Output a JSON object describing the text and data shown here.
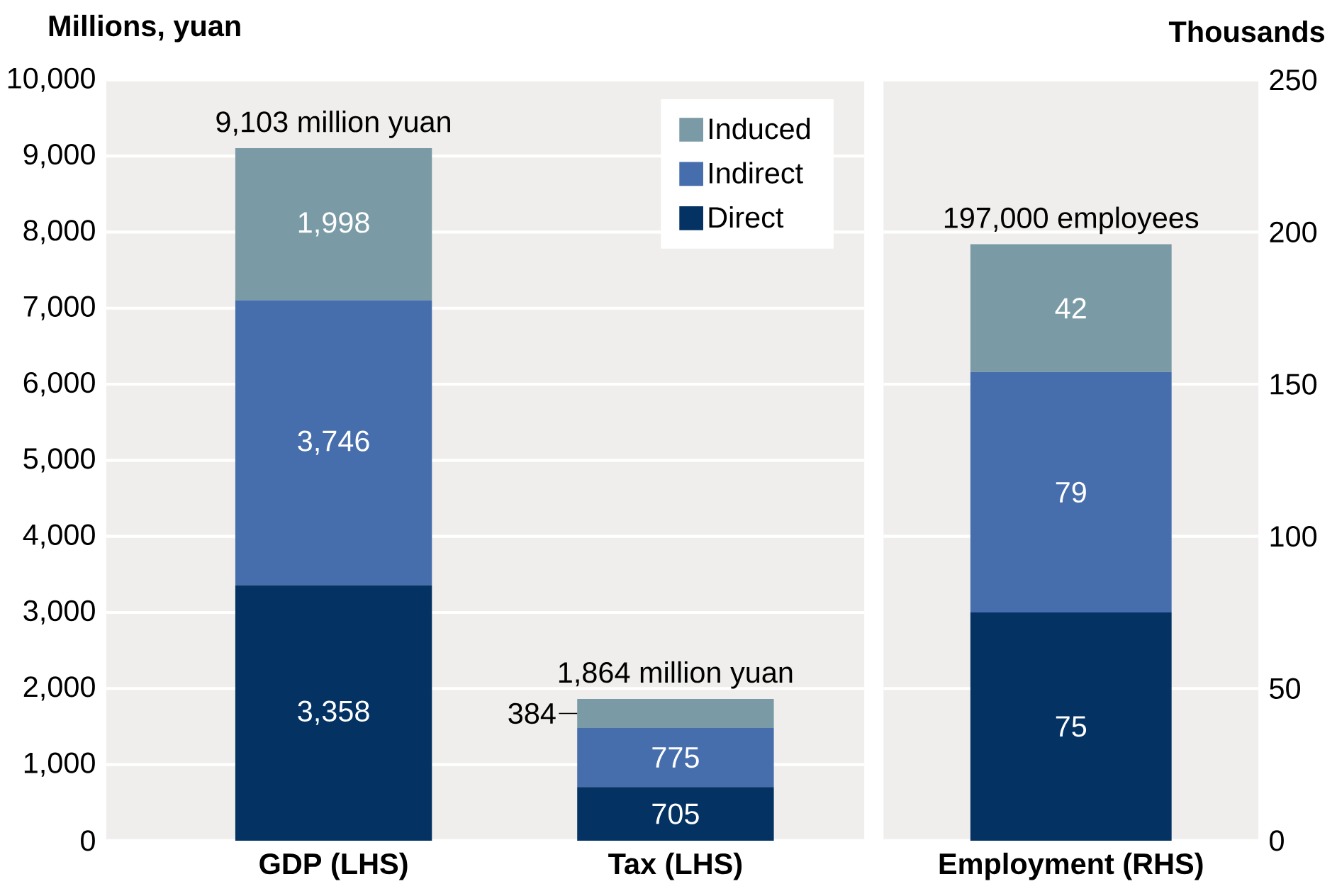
{
  "chart_data": [
    {
      "type": "bar",
      "ylabel": "Millions, yuan",
      "categories": [
        "GDP (LHS)",
        "Tax (LHS)"
      ],
      "stacked": true,
      "grid": "y",
      "legend": "top right",
      "ylim": [
        0,
        10000
      ],
      "yticks": [
        0,
        {
          "value": 1000,
          "label": "1,000"
        },
        {
          "value": 2000,
          "label": "2,000"
        },
        {
          "value": 3000,
          "label": "3,000"
        },
        {
          "value": 4000,
          "label": "4,000"
        },
        {
          "value": 5000,
          "label": "5,000"
        },
        {
          "value": 6000,
          "label": "6,000"
        },
        {
          "value": 7000,
          "label": "7,000"
        },
        {
          "value": 8000,
          "label": "8,000"
        },
        {
          "value": 9000,
          "label": "9,000"
        },
        {
          "value": 10000,
          "label": "10,000"
        }
      ],
      "series": [
        {
          "name": "Direct",
          "color": "#033263",
          "values": [
            3358,
            705
          ],
          "value_labels": [
            "3,358",
            "705"
          ]
        },
        {
          "name": "Indirect",
          "color": "#476eac",
          "values": [
            3746,
            775
          ],
          "value_labels": [
            "3,746",
            "775"
          ]
        },
        {
          "name": "Induced",
          "color": "#7a9ba6",
          "values": [
            1998,
            384
          ],
          "value_labels": [
            "1,998",
            "384"
          ]
        }
      ],
      "totals": [
        "9,103 million yuan",
        "1,864 million yuan"
      ]
    },
    {
      "type": "bar",
      "y2label": "Thousands",
      "categories": [
        "Employment (RHS)"
      ],
      "stacked": true,
      "grid": "y",
      "y2lim": [
        0,
        250
      ],
      "y2ticks": [
        0,
        50,
        100,
        150,
        200,
        250
      ],
      "series": [
        {
          "color": "#033263",
          "axis": "y2",
          "values": [
            75
          ],
          "value_labels": [
            "75"
          ]
        },
        {
          "color": "#476eac",
          "axis": "y2",
          "values": [
            79
          ],
          "value_labels": [
            "79"
          ]
        },
        {
          "color": "#7a9ba6",
          "axis": "y2",
          "values": [
            42
          ],
          "value_labels": [
            "42"
          ]
        }
      ],
      "totals": [
        "197,000 employees"
      ]
    }
  ]
}
